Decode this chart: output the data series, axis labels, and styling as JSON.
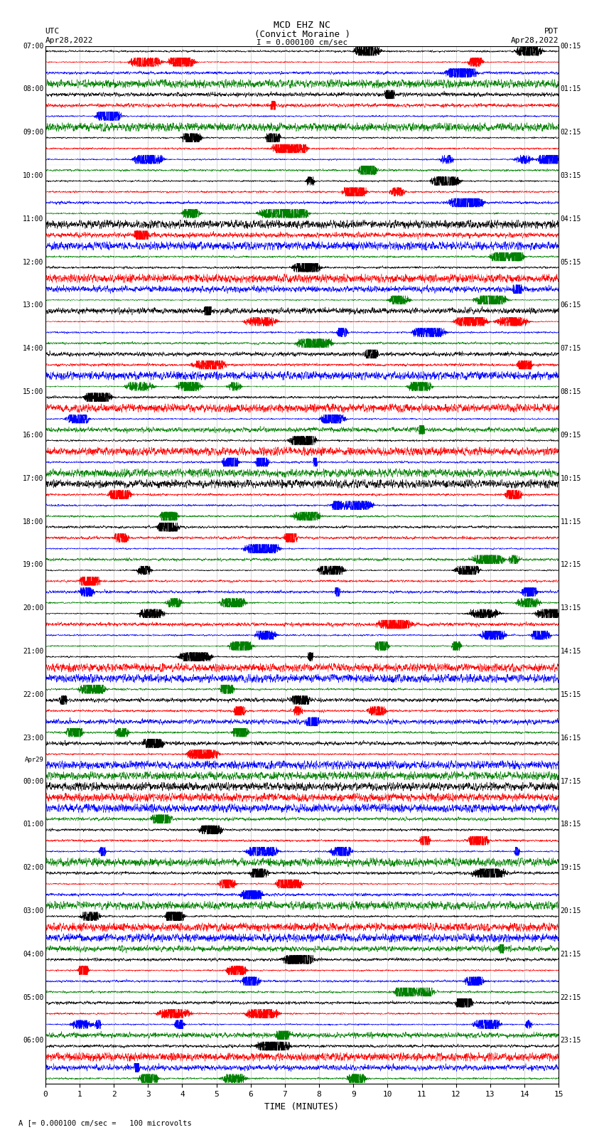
{
  "title_line1": "MCD EHZ NC",
  "title_line2": "(Convict Moraine )",
  "scale_label": "I = 0.000100 cm/sec",
  "footer_label": "A [= 0.000100 cm/sec =   100 microvolts",
  "utc_label": "UTC",
  "pdt_label": "PDT",
  "date_left": "Apr28,2022",
  "date_right": "Apr28,2022",
  "xlabel": "TIME (MINUTES)",
  "n_rows": 96,
  "colors_cycle": [
    "black",
    "red",
    "blue",
    "green"
  ],
  "left_labels": {
    "0": "07:00",
    "4": "08:00",
    "8": "09:00",
    "12": "10:00",
    "16": "11:00",
    "20": "12:00",
    "24": "13:00",
    "28": "14:00",
    "32": "15:00",
    "36": "16:00",
    "40": "17:00",
    "44": "18:00",
    "48": "19:00",
    "52": "20:00",
    "56": "21:00",
    "60": "22:00",
    "64": "23:00",
    "66": "Apr29",
    "68": "00:00",
    "72": "01:00",
    "76": "02:00",
    "80": "03:00",
    "84": "04:00",
    "88": "05:00",
    "92": "06:00"
  },
  "right_labels": {
    "0": "00:15",
    "4": "01:15",
    "8": "02:15",
    "12": "03:15",
    "16": "04:15",
    "20": "05:15",
    "24": "06:15",
    "28": "07:15",
    "32": "08:15",
    "36": "09:15",
    "40": "10:15",
    "44": "11:15",
    "48": "12:15",
    "52": "13:15",
    "56": "14:15",
    "60": "15:15",
    "64": "16:15",
    "68": "17:15",
    "72": "18:15",
    "76": "19:15",
    "80": "20:15",
    "84": "21:15",
    "88": "22:15",
    "92": "23:15"
  },
  "xlim": [
    0,
    15
  ],
  "xticks": [
    0,
    1,
    2,
    3,
    4,
    5,
    6,
    7,
    8,
    9,
    10,
    11,
    12,
    13,
    14,
    15
  ],
  "bg_color": "white",
  "trace_color_order": [
    "black",
    "red",
    "blue",
    "green"
  ],
  "grid_color": "#888888",
  "seed": 1234
}
